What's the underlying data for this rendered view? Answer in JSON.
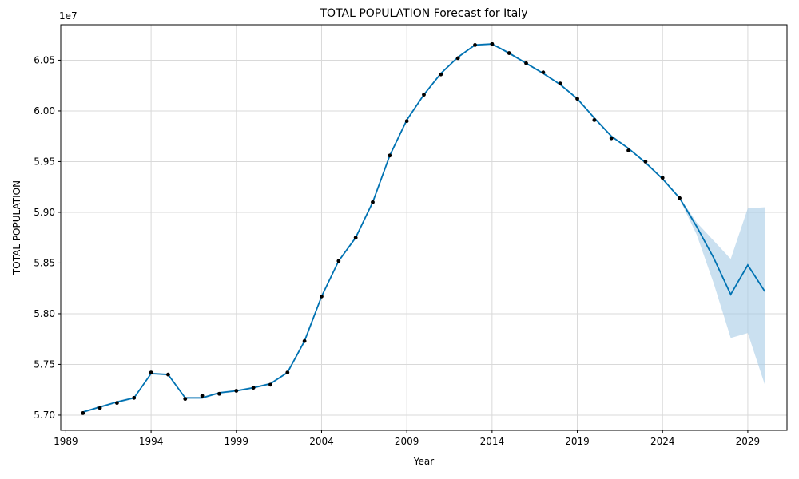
{
  "chart_data": {
    "type": "line",
    "title": "TOTAL POPULATION Forecast for Italy",
    "xlabel": "Year",
    "ylabel": "TOTAL POPULATION",
    "y_offset_label": "1e7",
    "xlim": [
      1988.7,
      2031.3
    ],
    "ylim": [
      56.85,
      60.85
    ],
    "y_scale_unit": "millions",
    "grid": true,
    "colors": {
      "line": "#0072b2",
      "band": "#a6cce6",
      "points": "#000000",
      "grid": "#d9d9d9"
    },
    "x_ticks": [
      1989,
      1994,
      1999,
      2004,
      2009,
      2014,
      2019,
      2024,
      2029
    ],
    "x_tick_labels": [
      "1989",
      "1994",
      "1999",
      "2004",
      "2009",
      "2014",
      "2019",
      "2024",
      "2029"
    ],
    "y_ticks": [
      57.0,
      57.5,
      58.0,
      58.5,
      59.0,
      59.5,
      60.0,
      60.5
    ],
    "y_tick_labels": [
      "5.70",
      "5.75",
      "5.80",
      "5.85",
      "5.90",
      "5.95",
      "6.00",
      "6.05"
    ],
    "observed": {
      "x": [
        1990,
        1991,
        1992,
        1993,
        1994,
        1995,
        1996,
        1997,
        1998,
        1999,
        2000,
        2001,
        2002,
        2003,
        2004,
        2005,
        2006,
        2007,
        2008,
        2009,
        2010,
        2011,
        2012,
        2013,
        2014,
        2015,
        2016,
        2017,
        2018,
        2019,
        2020,
        2021,
        2022,
        2023,
        2024,
        2025
      ],
      "y": [
        57.02,
        57.07,
        57.12,
        57.17,
        57.42,
        57.4,
        57.16,
        57.19,
        57.21,
        57.24,
        57.27,
        57.3,
        57.42,
        57.73,
        58.17,
        58.52,
        58.75,
        59.1,
        59.56,
        59.9,
        60.16,
        60.36,
        60.52,
        60.65,
        60.66,
        60.57,
        60.47,
        60.38,
        60.27,
        60.12,
        59.91,
        59.73,
        59.61,
        59.5,
        59.34,
        59.14
      ]
    },
    "forecast": {
      "x": [
        1990,
        1991,
        1992,
        1993,
        1994,
        1995,
        1996,
        1997,
        1998,
        1999,
        2000,
        2001,
        2002,
        2003,
        2004,
        2005,
        2006,
        2007,
        2008,
        2009,
        2010,
        2011,
        2012,
        2013,
        2014,
        2015,
        2016,
        2017,
        2018,
        2019,
        2020,
        2021,
        2022,
        2023,
        2024,
        2025,
        2026,
        2027,
        2028,
        2029,
        2030
      ],
      "yhat": [
        57.03,
        57.08,
        57.13,
        57.17,
        57.41,
        57.4,
        57.17,
        57.17,
        57.22,
        57.24,
        57.27,
        57.31,
        57.42,
        57.73,
        58.17,
        58.52,
        58.75,
        59.1,
        59.56,
        59.91,
        60.16,
        60.37,
        60.53,
        60.65,
        60.66,
        60.57,
        60.47,
        60.37,
        60.26,
        60.12,
        59.93,
        59.75,
        59.63,
        59.49,
        59.33,
        59.14,
        58.86,
        58.55,
        58.19,
        58.48,
        58.22
      ],
      "lower": [
        57.02,
        57.07,
        57.12,
        57.16,
        57.4,
        57.39,
        57.16,
        57.16,
        57.21,
        57.23,
        57.26,
        57.3,
        57.41,
        57.72,
        58.16,
        58.51,
        58.74,
        59.09,
        59.55,
        59.9,
        60.15,
        60.36,
        60.52,
        60.64,
        60.65,
        60.56,
        60.46,
        60.36,
        60.25,
        60.11,
        59.92,
        59.74,
        59.62,
        59.48,
        59.32,
        59.13,
        58.78,
        58.3,
        57.76,
        57.81,
        57.3
      ],
      "upper": [
        57.04,
        57.09,
        57.14,
        57.18,
        57.42,
        57.41,
        57.18,
        57.18,
        57.23,
        57.25,
        57.28,
        57.32,
        57.43,
        57.74,
        58.18,
        58.53,
        58.76,
        59.11,
        59.57,
        59.92,
        60.17,
        60.38,
        60.54,
        60.66,
        60.67,
        60.58,
        60.48,
        60.38,
        60.27,
        60.13,
        59.94,
        59.76,
        59.64,
        59.5,
        59.34,
        59.15,
        58.9,
        58.72,
        58.54,
        59.04,
        59.05
      ]
    }
  }
}
